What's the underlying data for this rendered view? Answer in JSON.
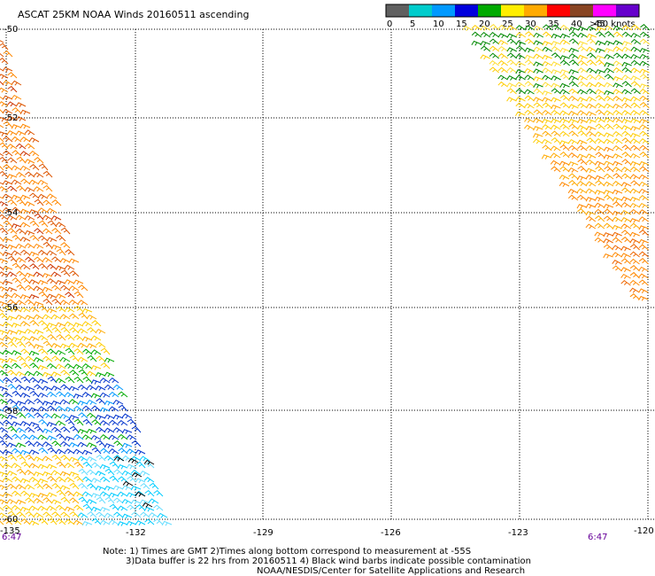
{
  "title": "ASCAT 25KM NOAA Winds 20160511 ascending",
  "colorbar": {
    "labels": [
      "0",
      "5",
      "10",
      "15",
      "20",
      "25",
      "30",
      "35",
      "40",
      "45",
      ">50 knots"
    ],
    "colors": [
      "#606060",
      "#00cccc",
      "#0099ff",
      "#0000dd",
      "#00aa00",
      "#ffee00",
      "#ffaa00",
      "#ff0000",
      "#884422",
      "#ff00ff",
      "#6600cc"
    ]
  },
  "axes": {
    "lat_labels": [
      "-50",
      "-52",
      "-54",
      "-56",
      "-58",
      "-60"
    ],
    "lon_labels": [
      "-135",
      "-132",
      "-129",
      "-126",
      "-123",
      "-120"
    ]
  },
  "times": {
    "left": "6:47",
    "right": "6:47"
  },
  "notes": {
    "line1": "Note: 1) Times are GMT 2)Times along bottom correspond to measurement at -55S",
    "line2": "3)Data buffer is 22 hrs from 20160511 4) Black wind barbs indicate possible contamination",
    "line3": "NOAA/NESDIS/Center for Satellite Applications and Research"
  }
}
